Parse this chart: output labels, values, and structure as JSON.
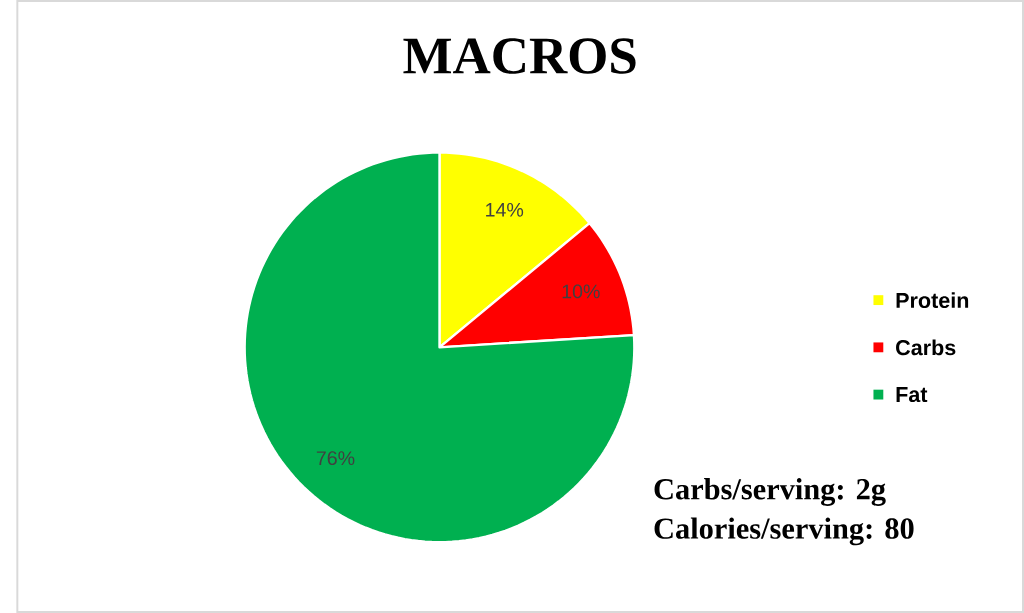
{
  "chart_data": {
    "type": "pie",
    "title": "MACROS",
    "categories": [
      "Protein",
      "Carbs",
      "Fat"
    ],
    "values": [
      14,
      10,
      76
    ],
    "colors": [
      "#ffff00",
      "#ff0000",
      "#00b050"
    ],
    "value_labels": [
      "14%",
      "10%",
      "76%"
    ],
    "legend": "right",
    "annotations": [
      "Carbs/serving: 2g",
      "Calories/serving: 80"
    ]
  }
}
